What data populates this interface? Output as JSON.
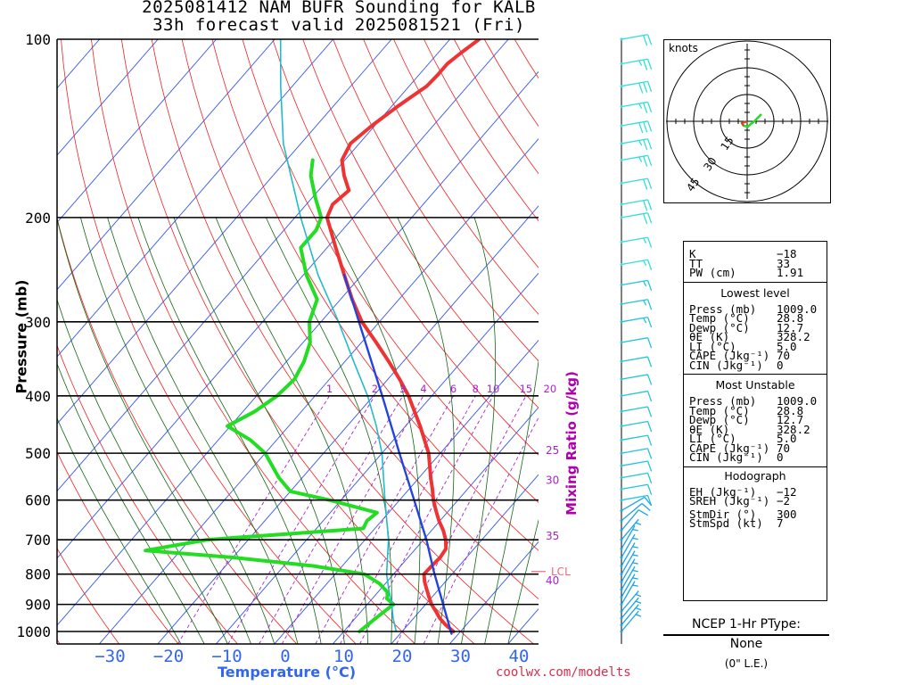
{
  "title": "2025081412 NAM BUFR Sounding for KALB",
  "subtitle": "33h forecast valid 2025081521 (Fri)",
  "footer_url": "coolwx.com/modelts",
  "colors": {
    "temperature": "#ee3333",
    "dewpoint": "#22dd22",
    "parcel": "#2244dd",
    "wetbulb": "#22bbcc",
    "isotherm": "#3355ee",
    "dry_adiabat": "#ee2222",
    "moist_adiabat": "#116611",
    "mixing_ratio": "#aa22cc",
    "lcl": "#ee6677",
    "wind_barbs": "#22bbdd"
  },
  "chart_data": {
    "type": "skew-t",
    "title": "2025081412 NAM BUFR Sounding for KALB",
    "subtitle": "33h forecast valid 2025081521 (Fri)",
    "xlabel": "Temperature (°C)",
    "ylabel": "Pressure (mb)",
    "secondary_label": "Mixing Ratio (g/kg)",
    "pressure_ticks": [
      {
        "p": 1000,
        "label": "1000"
      },
      {
        "p": 900,
        "label": "900"
      },
      {
        "p": 800,
        "label": "800"
      },
      {
        "p": 700,
        "label": "700"
      },
      {
        "p": 600,
        "label": "600"
      },
      {
        "p": 500,
        "label": "500"
      },
      {
        "p": 400,
        "label": "400"
      },
      {
        "p": 300,
        "label": "300"
      },
      {
        "p": 200,
        "label": "200"
      },
      {
        "p": 100,
        "label": "100"
      }
    ],
    "temperature_ticks": [
      {
        "t": -30,
        "label": "−30"
      },
      {
        "t": -20,
        "label": "−20"
      },
      {
        "t": -10,
        "label": "−10"
      },
      {
        "t": 0,
        "label": "0"
      },
      {
        "t": 10,
        "label": "10"
      },
      {
        "t": 20,
        "label": "20"
      },
      {
        "t": 30,
        "label": "30"
      },
      {
        "t": 40,
        "label": "40"
      }
    ],
    "mixing_ratio_labels": [
      {
        "w": 1,
        "label": "1"
      },
      {
        "w": 2,
        "label": "2"
      },
      {
        "w": 3,
        "label": "3"
      },
      {
        "w": 4,
        "label": "4"
      },
      {
        "w": 6,
        "label": "6"
      },
      {
        "w": 8,
        "label": "8"
      },
      {
        "w": 10,
        "label": "10"
      },
      {
        "w": 15,
        "label": "15"
      },
      {
        "w": 20,
        "label": "20"
      }
    ],
    "theta_e_labels": [
      {
        "p": 495,
        "label": "25"
      },
      {
        "p": 556,
        "label": "30"
      },
      {
        "p": 690,
        "label": "35"
      },
      {
        "p": 820,
        "label": "40"
      }
    ],
    "lcl": {
      "p": 792,
      "label": "LCL"
    },
    "series": [
      {
        "name": "Temperature",
        "points": [
          [
            1000,
            28.8
          ],
          [
            975,
            26.5
          ],
          [
            950,
            24.5
          ],
          [
            925,
            22.8
          ],
          [
            900,
            21.0
          ],
          [
            875,
            19.5
          ],
          [
            850,
            18.0
          ],
          [
            825,
            16.5
          ],
          [
            800,
            15.2
          ],
          [
            775,
            15.3
          ],
          [
            750,
            15.5
          ],
          [
            725,
            15.2
          ],
          [
            700,
            13.8
          ],
          [
            675,
            12.0
          ],
          [
            650,
            9.8
          ],
          [
            625,
            7.8
          ],
          [
            600,
            5.8
          ],
          [
            575,
            4.0
          ],
          [
            550,
            2.0
          ],
          [
            500,
            -2.0
          ],
          [
            450,
            -7.5
          ],
          [
            400,
            -14.0
          ],
          [
            375,
            -18.0
          ],
          [
            350,
            -22.5
          ],
          [
            325,
            -27.5
          ],
          [
            300,
            -33.0
          ],
          [
            275,
            -38.0
          ],
          [
            250,
            -43.0
          ],
          [
            225,
            -48.5
          ],
          [
            200,
            -54.5
          ],
          [
            190,
            -55.5
          ],
          [
            180,
            -54.8
          ],
          [
            170,
            -57.8
          ],
          [
            160,
            -60.5
          ],
          [
            150,
            -61.5
          ],
          [
            140,
            -60.5
          ],
          [
            130,
            -59.0
          ],
          [
            120,
            -57.0
          ],
          [
            115,
            -56.8
          ],
          [
            110,
            -56.8
          ],
          [
            105,
            -56.0
          ],
          [
            100,
            -55.0
          ]
        ]
      },
      {
        "name": "Dewpoint",
        "points": [
          [
            1000,
            12.7
          ],
          [
            950,
            13.5
          ],
          [
            900,
            14.5
          ],
          [
            880,
            12.5
          ],
          [
            860,
            11.8
          ],
          [
            830,
            9.0
          ],
          [
            800,
            5.0
          ],
          [
            775,
            -5.0
          ],
          [
            750,
            -20.0
          ],
          [
            730,
            -36.0
          ],
          [
            700,
            -27.0
          ],
          [
            670,
            -2.0
          ],
          [
            650,
            -2.5
          ],
          [
            630,
            -2.0
          ],
          [
            600,
            -12.0
          ],
          [
            580,
            -20.0
          ],
          [
            550,
            -24.0
          ],
          [
            500,
            -30.0
          ],
          [
            475,
            -34.5
          ],
          [
            450,
            -40.5
          ],
          [
            425,
            -38.0
          ],
          [
            400,
            -36.5
          ],
          [
            375,
            -36.0
          ],
          [
            350,
            -37.0
          ],
          [
            325,
            -38.8
          ],
          [
            300,
            -42.0
          ],
          [
            275,
            -44.0
          ],
          [
            250,
            -49.5
          ],
          [
            225,
            -54.5
          ],
          [
            210,
            -54.5
          ],
          [
            200,
            -55.5
          ],
          [
            185,
            -59.5
          ],
          [
            170,
            -63.5
          ],
          [
            160,
            -65.5
          ]
        ]
      },
      {
        "name": "Wet bulb",
        "points": [
          [
            1000,
            19.0
          ],
          [
            950,
            16.5
          ],
          [
            900,
            14.2
          ],
          [
            850,
            11.5
          ],
          [
            800,
            8.8
          ],
          [
            700,
            4.0
          ],
          [
            600,
            -2.5
          ],
          [
            500,
            -10.0
          ],
          [
            450,
            -15.0
          ],
          [
            400,
            -21.0
          ],
          [
            350,
            -28.5
          ],
          [
            300,
            -37.0
          ],
          [
            250,
            -47.5
          ],
          [
            200,
            -59.0
          ],
          [
            150,
            -73.0
          ],
          [
            120,
            -82.0
          ],
          [
            100,
            -89.0
          ]
        ]
      },
      {
        "name": "Parcel",
        "points": [
          [
            1009,
            28.8
          ],
          [
            792,
            16.5
          ],
          [
            700,
            10.5
          ],
          [
            600,
            2.5
          ],
          [
            500,
            -7.0
          ],
          [
            400,
            -18.5
          ],
          [
            300,
            -33.5
          ],
          [
            250,
            -43.0
          ]
        ]
      }
    ],
    "wind_profile_kt": [
      {
        "p": 100,
        "dir": 260,
        "spd": 22
      },
      {
        "p": 110,
        "dir": 260,
        "spd": 25
      },
      {
        "p": 120,
        "dir": 260,
        "spd": 30
      },
      {
        "p": 130,
        "dir": 260,
        "spd": 28
      },
      {
        "p": 140,
        "dir": 260,
        "spd": 30
      },
      {
        "p": 150,
        "dir": 260,
        "spd": 28
      },
      {
        "p": 160,
        "dir": 260,
        "spd": 25
      },
      {
        "p": 175,
        "dir": 260,
        "spd": 20
      },
      {
        "p": 190,
        "dir": 260,
        "spd": 20
      },
      {
        "p": 200,
        "dir": 260,
        "spd": 20
      },
      {
        "p": 220,
        "dir": 260,
        "spd": 15
      },
      {
        "p": 240,
        "dir": 260,
        "spd": 15
      },
      {
        "p": 260,
        "dir": 260,
        "spd": 15
      },
      {
        "p": 280,
        "dir": 260,
        "spd": 15
      },
      {
        "p": 300,
        "dir": 260,
        "spd": 15
      },
      {
        "p": 325,
        "dir": 260,
        "spd": 10
      },
      {
        "p": 350,
        "dir": 260,
        "spd": 10
      },
      {
        "p": 375,
        "dir": 260,
        "spd": 10
      },
      {
        "p": 400,
        "dir": 260,
        "spd": 10
      },
      {
        "p": 425,
        "dir": 260,
        "spd": 10
      },
      {
        "p": 450,
        "dir": 260,
        "spd": 10
      },
      {
        "p": 475,
        "dir": 260,
        "spd": 10
      },
      {
        "p": 500,
        "dir": 260,
        "spd": 10
      },
      {
        "p": 525,
        "dir": 260,
        "spd": 10
      },
      {
        "p": 550,
        "dir": 260,
        "spd": 10
      },
      {
        "p": 575,
        "dir": 260,
        "spd": 10
      },
      {
        "p": 600,
        "dir": 260,
        "spd": 10
      },
      {
        "p": 625,
        "dir": 240,
        "spd": 10
      },
      {
        "p": 650,
        "dir": 230,
        "spd": 10
      },
      {
        "p": 675,
        "dir": 220,
        "spd": 10
      },
      {
        "p": 700,
        "dir": 220,
        "spd": 5
      },
      {
        "p": 725,
        "dir": 210,
        "spd": 5
      },
      {
        "p": 750,
        "dir": 210,
        "spd": 5
      },
      {
        "p": 775,
        "dir": 210,
        "spd": 5
      },
      {
        "p": 800,
        "dir": 210,
        "spd": 5
      },
      {
        "p": 825,
        "dir": 210,
        "spd": 5
      },
      {
        "p": 850,
        "dir": 210,
        "spd": 5
      },
      {
        "p": 875,
        "dir": 210,
        "spd": 5
      },
      {
        "p": 900,
        "dir": 210,
        "spd": 5
      },
      {
        "p": 925,
        "dir": 220,
        "spd": 5
      },
      {
        "p": 950,
        "dir": 220,
        "spd": 5
      },
      {
        "p": 975,
        "dir": 220,
        "spd": 5
      },
      {
        "p": 1000,
        "dir": 220,
        "spd": 5
      }
    ],
    "hodograph": {
      "units_label": "knots",
      "rings": [
        15,
        30,
        45
      ],
      "ring_labels": [
        "15",
        "30",
        "45"
      ],
      "trace": [
        [
          0,
          0
        ],
        [
          -1.5,
          0.5
        ],
        [
          -3,
          1
        ],
        [
          -2,
          2.5
        ],
        [
          0.5,
          3
        ],
        [
          2,
          1.5
        ],
        [
          4,
          0
        ],
        [
          6,
          -2
        ],
        [
          8,
          -4
        ]
      ]
    }
  },
  "indices": {
    "top": [
      {
        "label": "K",
        "value": "−18"
      },
      {
        "label": "TT",
        "value": "33"
      },
      {
        "label": "PW (cm)",
        "value": "1.91"
      }
    ],
    "lowest_level_title": "Lowest level",
    "lowest_level": [
      {
        "label": "Press (mb)",
        "value": "1009.0"
      },
      {
        "label": "Temp (°C)",
        "value": "28.8"
      },
      {
        "label": "Dewp (°C)",
        "value": "12.7"
      },
      {
        "label": "θE (K)",
        "value": "328.2"
      },
      {
        "label": "LI (°C)",
        "value": "5.0"
      },
      {
        "label": "CAPE (Jkg⁻¹)",
        "value": "70"
      },
      {
        "label": "CIN (Jkg⁻¹)",
        "value": "0"
      }
    ],
    "most_unstable_title": "Most Unstable",
    "most_unstable": [
      {
        "label": "Press (mb)",
        "value": "1009.0"
      },
      {
        "label": "Temp (°C)",
        "value": "28.8"
      },
      {
        "label": "Dewp (°C)",
        "value": "12.7"
      },
      {
        "label": "θE (K)",
        "value": "328.2"
      },
      {
        "label": "LI (°C)",
        "value": "5.0"
      },
      {
        "label": "CAPE (Jkg⁻¹)",
        "value": "70"
      },
      {
        "label": "CIN (Jkg⁻¹)",
        "value": "0"
      }
    ],
    "hodograph_title": "Hodograph",
    "hodograph_rows": [
      {
        "label": "EH (Jkg⁻¹)",
        "value": "−12"
      },
      {
        "label": "SREH (Jkg⁻¹)",
        "value": "−2"
      },
      {
        "label": "StmDir (°)",
        "value": "300"
      },
      {
        "label": "StmSpd (kt)",
        "value": "7"
      }
    ]
  },
  "ptype": {
    "title": "NCEP 1-Hr PType:",
    "value": "None",
    "accum": "(0\" L.E.)"
  }
}
